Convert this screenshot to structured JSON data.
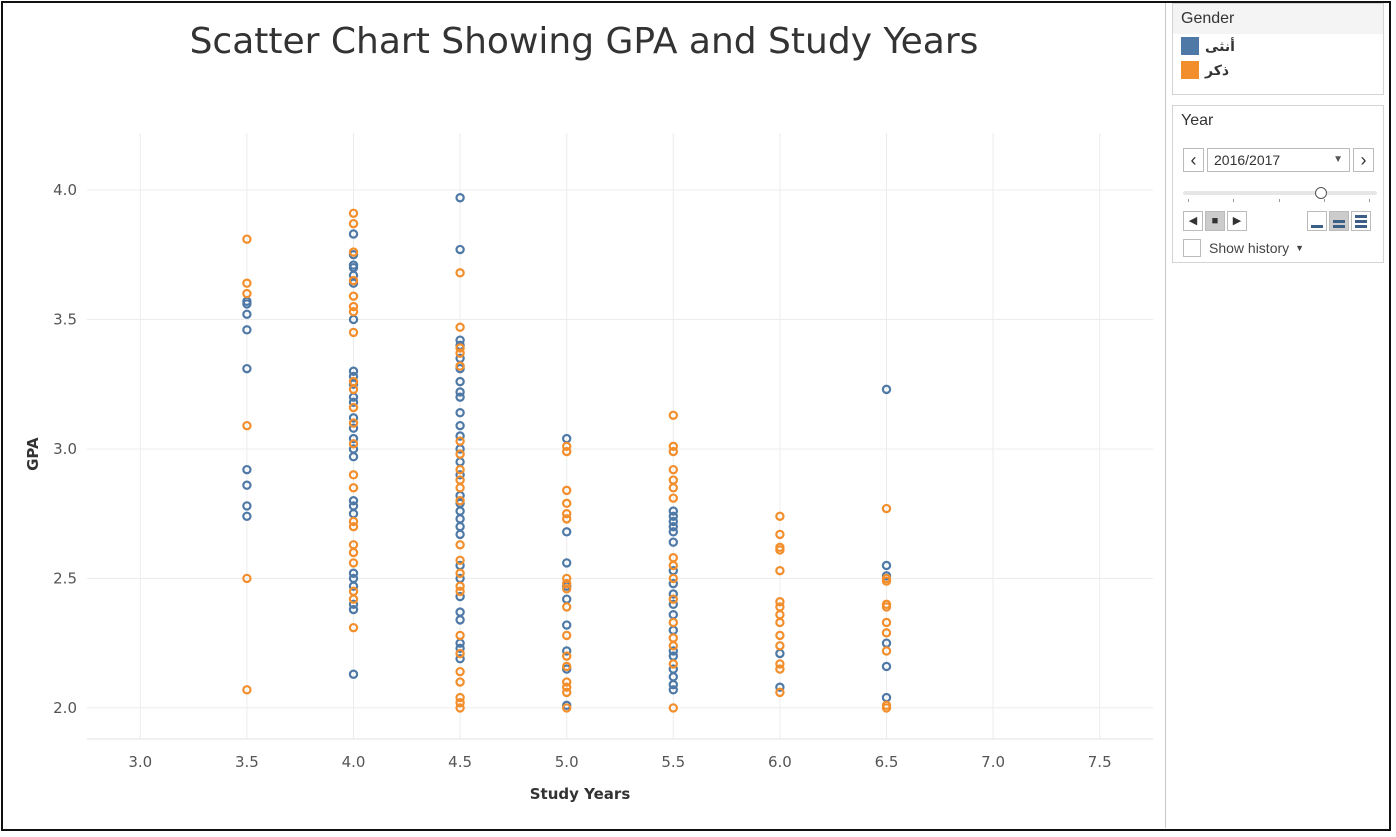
{
  "chart_data": {
    "type": "scatter",
    "title": "Scatter Chart Showing GPA and Study Years",
    "xlabel": "Study Years",
    "ylabel": "GPA",
    "xlim": [
      2.75,
      7.75
    ],
    "ylim": [
      1.88,
      4.22
    ],
    "xticks": [
      "3.0",
      "3.5",
      "4.0",
      "4.5",
      "5.0",
      "5.5",
      "6.0",
      "6.5",
      "7.0",
      "7.5"
    ],
    "yticks": [
      "2.0",
      "2.5",
      "3.0",
      "3.5",
      "4.0"
    ],
    "grid": true,
    "marker": "hollow-circle",
    "series": [
      {
        "name": "أنثى",
        "color": "#4e79a7",
        "points": [
          [
            3.5,
            3.57
          ],
          [
            3.5,
            3.56
          ],
          [
            3.5,
            3.52
          ],
          [
            3.5,
            3.46
          ],
          [
            3.5,
            3.31
          ],
          [
            3.5,
            2.92
          ],
          [
            3.5,
            2.86
          ],
          [
            3.5,
            2.78
          ],
          [
            3.5,
            2.74
          ],
          [
            4.0,
            3.83
          ],
          [
            4.0,
            3.75
          ],
          [
            4.0,
            3.71
          ],
          [
            4.0,
            3.7
          ],
          [
            4.0,
            3.67
          ],
          [
            4.0,
            3.64
          ],
          [
            4.0,
            3.5
          ],
          [
            4.0,
            3.3
          ],
          [
            4.0,
            3.28
          ],
          [
            4.0,
            3.25
          ],
          [
            4.0,
            3.2
          ],
          [
            4.0,
            3.18
          ],
          [
            4.0,
            3.12
          ],
          [
            4.0,
            3.08
          ],
          [
            4.0,
            3.04
          ],
          [
            4.0,
            3.0
          ],
          [
            4.0,
            2.97
          ],
          [
            4.0,
            2.8
          ],
          [
            4.0,
            2.78
          ],
          [
            4.0,
            2.75
          ],
          [
            4.0,
            2.52
          ],
          [
            4.0,
            2.5
          ],
          [
            4.0,
            2.47
          ],
          [
            4.0,
            2.4
          ],
          [
            4.0,
            2.38
          ],
          [
            4.0,
            2.13
          ],
          [
            4.5,
            3.97
          ],
          [
            4.5,
            3.77
          ],
          [
            4.5,
            3.42
          ],
          [
            4.5,
            3.4
          ],
          [
            4.5,
            3.35
          ],
          [
            4.5,
            3.31
          ],
          [
            4.5,
            3.26
          ],
          [
            4.5,
            3.22
          ],
          [
            4.5,
            3.2
          ],
          [
            4.5,
            3.14
          ],
          [
            4.5,
            3.09
          ],
          [
            4.5,
            3.05
          ],
          [
            4.5,
            3.0
          ],
          [
            4.5,
            2.95
          ],
          [
            4.5,
            2.9
          ],
          [
            4.5,
            2.82
          ],
          [
            4.5,
            2.79
          ],
          [
            4.5,
            2.76
          ],
          [
            4.5,
            2.73
          ],
          [
            4.5,
            2.7
          ],
          [
            4.5,
            2.67
          ],
          [
            4.5,
            2.55
          ],
          [
            4.5,
            2.5
          ],
          [
            4.5,
            2.43
          ],
          [
            4.5,
            2.37
          ],
          [
            4.5,
            2.34
          ],
          [
            4.5,
            2.25
          ],
          [
            4.5,
            2.23
          ],
          [
            4.5,
            2.19
          ],
          [
            5.0,
            3.04
          ],
          [
            5.0,
            2.68
          ],
          [
            5.0,
            2.56
          ],
          [
            5.0,
            2.47
          ],
          [
            5.0,
            2.42
          ],
          [
            5.0,
            2.32
          ],
          [
            5.0,
            2.22
          ],
          [
            5.0,
            2.15
          ],
          [
            5.0,
            2.01
          ],
          [
            5.5,
            2.76
          ],
          [
            5.5,
            2.74
          ],
          [
            5.5,
            2.72
          ],
          [
            5.5,
            2.7
          ],
          [
            5.5,
            2.68
          ],
          [
            5.5,
            2.64
          ],
          [
            5.5,
            2.53
          ],
          [
            5.5,
            2.48
          ],
          [
            5.5,
            2.44
          ],
          [
            5.5,
            2.4
          ],
          [
            5.5,
            2.36
          ],
          [
            5.5,
            2.3
          ],
          [
            5.5,
            2.22
          ],
          [
            5.5,
            2.2
          ],
          [
            5.5,
            2.15
          ],
          [
            5.5,
            2.12
          ],
          [
            5.5,
            2.09
          ],
          [
            5.5,
            2.07
          ],
          [
            6.0,
            2.21
          ],
          [
            6.0,
            2.08
          ],
          [
            6.5,
            3.23
          ],
          [
            6.5,
            2.55
          ],
          [
            6.5,
            2.51
          ],
          [
            6.5,
            2.25
          ],
          [
            6.5,
            2.16
          ],
          [
            6.5,
            2.04
          ]
        ]
      },
      {
        "name": "ذكر",
        "color": "#f28e2b",
        "points": [
          [
            3.5,
            3.81
          ],
          [
            3.5,
            3.64
          ],
          [
            3.5,
            3.6
          ],
          [
            3.5,
            3.09
          ],
          [
            3.5,
            2.5
          ],
          [
            3.5,
            2.07
          ],
          [
            4.0,
            3.91
          ],
          [
            4.0,
            3.87
          ],
          [
            4.0,
            3.76
          ],
          [
            4.0,
            3.65
          ],
          [
            4.0,
            3.59
          ],
          [
            4.0,
            3.55
          ],
          [
            4.0,
            3.53
          ],
          [
            4.0,
            3.45
          ],
          [
            4.0,
            3.26
          ],
          [
            4.0,
            3.23
          ],
          [
            4.0,
            3.16
          ],
          [
            4.0,
            3.1
          ],
          [
            4.0,
            3.02
          ],
          [
            4.0,
            2.9
          ],
          [
            4.0,
            2.85
          ],
          [
            4.0,
            2.72
          ],
          [
            4.0,
            2.7
          ],
          [
            4.0,
            2.63
          ],
          [
            4.0,
            2.6
          ],
          [
            4.0,
            2.56
          ],
          [
            4.0,
            2.45
          ],
          [
            4.0,
            2.42
          ],
          [
            4.0,
            2.31
          ],
          [
            4.5,
            3.68
          ],
          [
            4.5,
            3.47
          ],
          [
            4.5,
            3.39
          ],
          [
            4.5,
            3.37
          ],
          [
            4.5,
            3.32
          ],
          [
            4.5,
            3.03
          ],
          [
            4.5,
            2.98
          ],
          [
            4.5,
            2.92
          ],
          [
            4.5,
            2.88
          ],
          [
            4.5,
            2.85
          ],
          [
            4.5,
            2.8
          ],
          [
            4.5,
            2.63
          ],
          [
            4.5,
            2.57
          ],
          [
            4.5,
            2.52
          ],
          [
            4.5,
            2.47
          ],
          [
            4.5,
            2.45
          ],
          [
            4.5,
            2.28
          ],
          [
            4.5,
            2.21
          ],
          [
            4.5,
            2.14
          ],
          [
            4.5,
            2.1
          ],
          [
            4.5,
            2.04
          ],
          [
            4.5,
            2.02
          ],
          [
            4.5,
            2.0
          ],
          [
            5.0,
            3.01
          ],
          [
            5.0,
            2.99
          ],
          [
            5.0,
            2.84
          ],
          [
            5.0,
            2.79
          ],
          [
            5.0,
            2.75
          ],
          [
            5.0,
            2.73
          ],
          [
            5.0,
            2.5
          ],
          [
            5.0,
            2.48
          ],
          [
            5.0,
            2.46
          ],
          [
            5.0,
            2.39
          ],
          [
            5.0,
            2.28
          ],
          [
            5.0,
            2.2
          ],
          [
            5.0,
            2.16
          ],
          [
            5.0,
            2.1
          ],
          [
            5.0,
            2.08
          ],
          [
            5.0,
            2.06
          ],
          [
            5.0,
            2.0
          ],
          [
            5.5,
            3.13
          ],
          [
            5.5,
            3.01
          ],
          [
            5.5,
            2.99
          ],
          [
            5.5,
            2.92
          ],
          [
            5.5,
            2.88
          ],
          [
            5.5,
            2.85
          ],
          [
            5.5,
            2.81
          ],
          [
            5.5,
            2.58
          ],
          [
            5.5,
            2.55
          ],
          [
            5.5,
            2.5
          ],
          [
            5.5,
            2.42
          ],
          [
            5.5,
            2.33
          ],
          [
            5.5,
            2.27
          ],
          [
            5.5,
            2.24
          ],
          [
            5.5,
            2.17
          ],
          [
            5.5,
            2.0
          ],
          [
            6.0,
            2.74
          ],
          [
            6.0,
            2.67
          ],
          [
            6.0,
            2.62
          ],
          [
            6.0,
            2.61
          ],
          [
            6.0,
            2.53
          ],
          [
            6.0,
            2.41
          ],
          [
            6.0,
            2.39
          ],
          [
            6.0,
            2.36
          ],
          [
            6.0,
            2.33
          ],
          [
            6.0,
            2.28
          ],
          [
            6.0,
            2.24
          ],
          [
            6.0,
            2.17
          ],
          [
            6.0,
            2.15
          ],
          [
            6.0,
            2.06
          ],
          [
            6.5,
            2.77
          ],
          [
            6.5,
            2.5
          ],
          [
            6.5,
            2.49
          ],
          [
            6.5,
            2.4
          ],
          [
            6.5,
            2.39
          ],
          [
            6.5,
            2.33
          ],
          [
            6.5,
            2.29
          ],
          [
            6.5,
            2.22
          ],
          [
            6.5,
            2.01
          ],
          [
            6.5,
            2.0
          ]
        ]
      }
    ]
  },
  "legend": {
    "title": "Gender",
    "items": [
      {
        "label": "أنثى",
        "color": "#4e79a7"
      },
      {
        "label": "ذكر",
        "color": "#f28e2b"
      }
    ]
  },
  "year_filter": {
    "title": "Year",
    "selected": "2016/2017",
    "slider_position": 0.72,
    "show_history_label": "Show history"
  }
}
